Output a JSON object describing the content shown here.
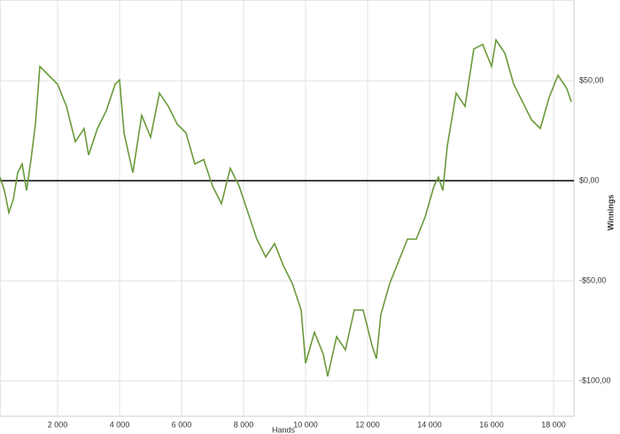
{
  "chart_data": {
    "type": "line",
    "x_label": "Hands",
    "y_label": "Winnings",
    "x": [
      143,
      286,
      429,
      571,
      714,
      857,
      1000,
      1143,
      1286,
      1429,
      1714,
      2000,
      2286,
      2571,
      2857,
      3000,
      3286,
      3571,
      3857,
      4000,
      4143,
      4429,
      4714,
      5000,
      5286,
      5571,
      5857,
      6143,
      6429,
      6714,
      7000,
      7286,
      7571,
      7857,
      8143,
      8429,
      8714,
      9000,
      9286,
      9571,
      9857,
      10000,
      10286,
      10571,
      10714,
      11000,
      11286,
      11571,
      11857,
      12143,
      12286,
      12429,
      12714,
      13000,
      13286,
      13571,
      13857,
      14143,
      14286,
      14429,
      14571,
      14857,
      15143,
      15429,
      15714,
      16000,
      16143,
      16429,
      16714,
      17000,
      17286,
      17571,
      17857,
      18143,
      18429,
      18571
    ],
    "series": [
      {
        "name": "Winnings",
        "color": "#6a9a3a",
        "values": [
          1.8,
          -4.9,
          -15.9,
          -9.3,
          4,
          8.4,
          -4.9,
          10.6,
          28.3,
          57.1,
          52.7,
          48.2,
          37.2,
          19.5,
          26.1,
          12.8,
          26.1,
          35,
          48.2,
          50.4,
          23.9,
          4,
          32.7,
          21.7,
          43.8,
          37.2,
          28.3,
          23.9,
          8.4,
          10.6,
          -2.7,
          -11.5,
          6.2,
          -2.7,
          -15.9,
          -29.2,
          -38.1,
          -31.4,
          -42.5,
          -51.3,
          -64.6,
          -91.2,
          -75.7,
          -86.7,
          -97.8,
          -77.9,
          -84.5,
          -64.6,
          -64.6,
          -82.3,
          -88.9,
          -66.8,
          -51.3,
          -40.3,
          -29.2,
          -29.2,
          -18.1,
          -2.7,
          1.8,
          -4.9,
          17.3,
          43.8,
          37.2,
          65.9,
          68.1,
          57.1,
          70.4,
          63.7,
          48.2,
          39.4,
          30.5,
          26.1,
          41.6,
          52.7,
          46,
          39.4
        ]
      }
    ],
    "xlim": [
      143,
      18657
    ],
    "ylim": [
      -117.7,
      90.3
    ],
    "xticks": [
      {
        "value": 2000,
        "label": "2 000"
      },
      {
        "value": 4000,
        "label": "4 000"
      },
      {
        "value": 6000,
        "label": "6 000"
      },
      {
        "value": 8000,
        "label": "8 000"
      },
      {
        "value": 10000,
        "label": "10 000"
      },
      {
        "value": 12000,
        "label": "12 000"
      },
      {
        "value": 14000,
        "label": "14 000"
      },
      {
        "value": 16000,
        "label": "16 000"
      },
      {
        "value": 18000,
        "label": "18 000"
      }
    ],
    "yticks": [
      {
        "value": -100,
        "label": "-$100,00"
      },
      {
        "value": -50,
        "label": "-$50,00"
      },
      {
        "value": 0,
        "label": "$0,00"
      },
      {
        "value": 50,
        "label": "$50,00"
      }
    ],
    "grid": true
  }
}
